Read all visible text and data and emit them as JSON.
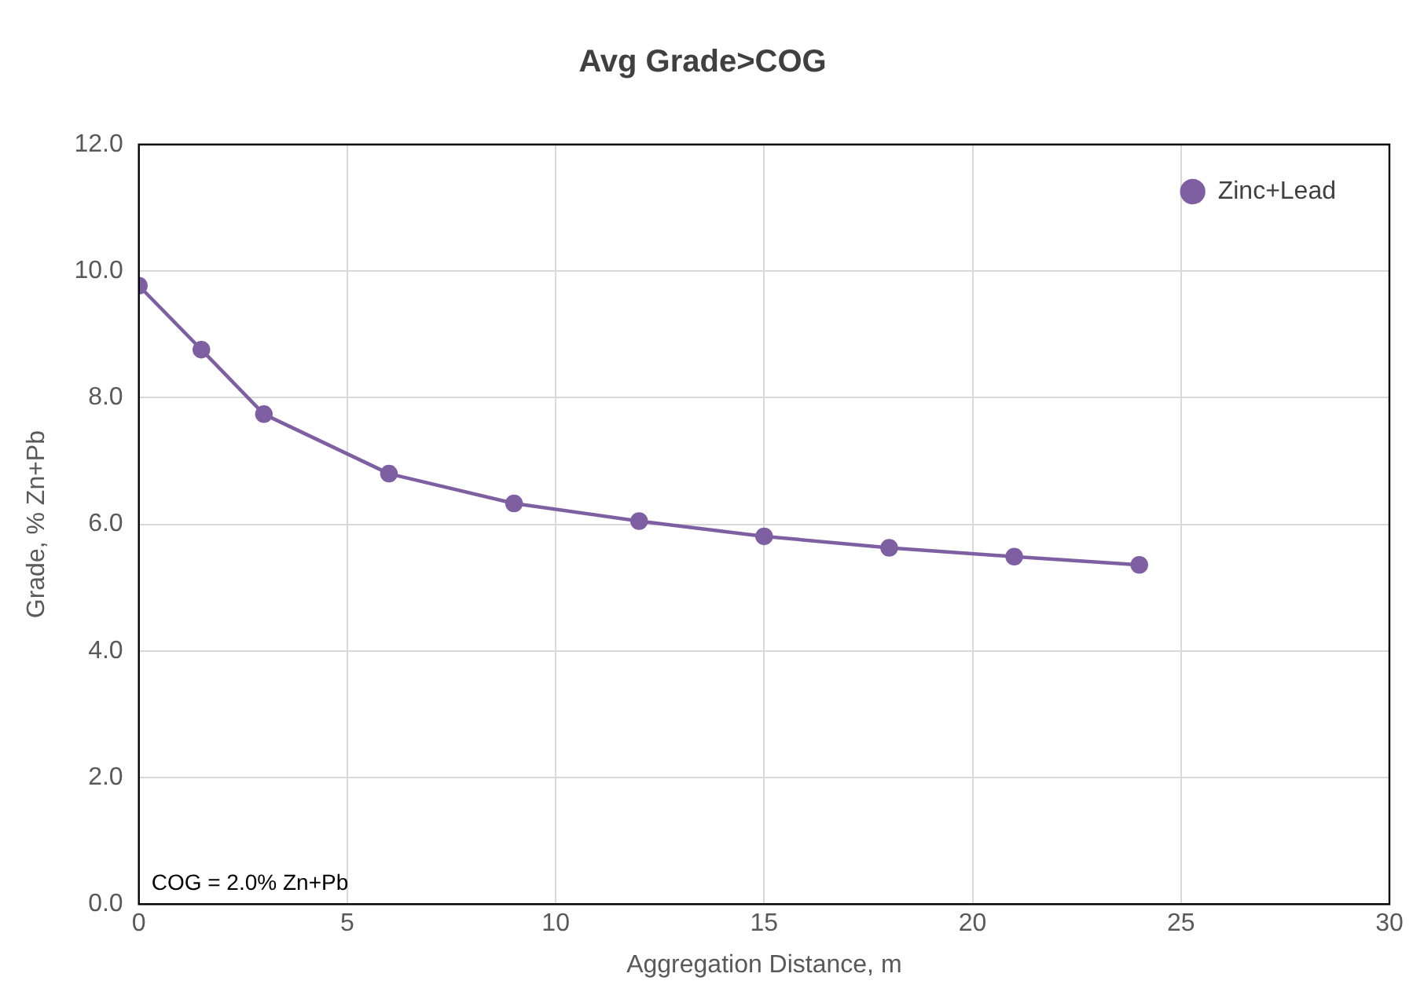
{
  "chart_data": {
    "type": "line",
    "title": "Avg Grade>COG",
    "xlabel": "Aggregation Distance, m",
    "ylabel": "Grade, % Zn+Pb",
    "x": [
      0,
      1.5,
      3,
      6,
      9,
      12,
      15,
      18,
      21,
      24
    ],
    "series": [
      {
        "name": "Zinc+Lead",
        "color": "#7e5fa2",
        "values": [
          9.77,
          8.76,
          7.74,
          6.8,
          6.33,
          6.05,
          5.81,
          5.63,
          5.49,
          5.36
        ]
      }
    ],
    "xlim": [
      0,
      30
    ],
    "xticks": [
      0,
      5,
      10,
      15,
      20,
      25,
      30
    ],
    "ylim": [
      0,
      12
    ],
    "yticks": [
      {
        "value": 0,
        "label": "0.0"
      },
      {
        "value": 2,
        "label": "2.0"
      },
      {
        "value": 4,
        "label": "4.0"
      },
      {
        "value": 6,
        "label": "6.0"
      },
      {
        "value": 8,
        "label": "8.0"
      },
      {
        "value": 10,
        "label": "10.0"
      },
      {
        "value": 12,
        "label": "12.0"
      }
    ],
    "grid": true,
    "legend": "top right",
    "marker": "circle",
    "line_style": "solid",
    "annotations": [
      "COG = 2.0% Zn+Pb"
    ]
  }
}
